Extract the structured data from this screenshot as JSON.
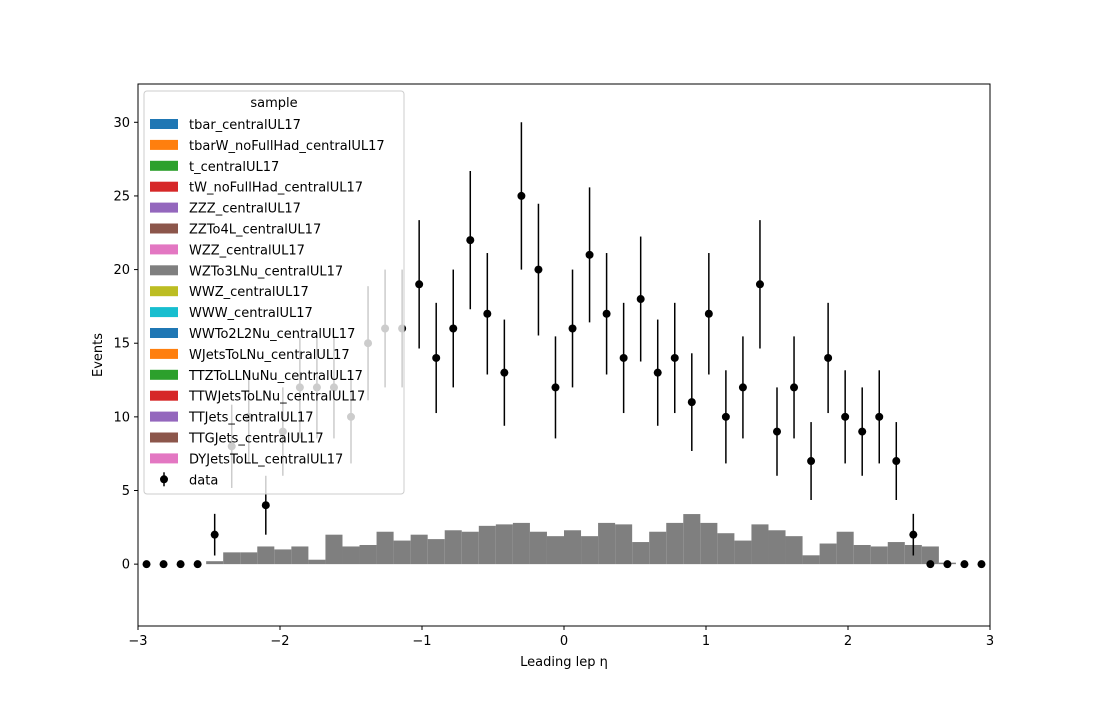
{
  "chart_data": {
    "type": "stacked-histogram",
    "xlabel": "Leading lep η",
    "ylabel": "Events",
    "xlim": [
      -3,
      3
    ],
    "ylim": [
      -4.2,
      32.6
    ],
    "xticks": [
      "−3",
      "−2",
      "−1",
      "0",
      "1",
      "2",
      "3"
    ],
    "xtick_values": [
      -3,
      -2,
      -1,
      0,
      1,
      2,
      3
    ],
    "yticks": [
      "0",
      "5",
      "10",
      "15",
      "20",
      "25",
      "30"
    ],
    "ytick_values": [
      0,
      5,
      10,
      15,
      20,
      25,
      30
    ],
    "legend_title": "sample",
    "legend_placement": "upper-left",
    "bin_edges": [
      -3.0,
      -2.88,
      -2.76,
      -2.64,
      -2.52,
      -2.4,
      -2.28,
      -2.16,
      -2.04,
      -1.92,
      -1.8,
      -1.68,
      -1.56,
      -1.44,
      -1.32,
      -1.2,
      -1.08,
      -0.96,
      -0.84,
      -0.72,
      -0.6,
      -0.48,
      -0.36,
      -0.24,
      -0.12,
      0.0,
      0.12,
      0.24,
      0.36,
      0.48,
      0.6,
      0.72,
      0.84,
      0.96,
      1.08,
      1.2,
      1.32,
      1.44,
      1.56,
      1.68,
      1.8,
      1.92,
      2.04,
      2.16,
      2.28,
      2.4,
      2.52,
      2.64,
      2.76,
      2.88,
      3.0
    ],
    "series": [
      {
        "name": "tbar_centralUL17",
        "color": "#1f77b4",
        "values": [
          0,
          0,
          0,
          0,
          0,
          0,
          0,
          0,
          0,
          0,
          0,
          0,
          0,
          0,
          0,
          0,
          0,
          0,
          0,
          0,
          0,
          0,
          0,
          0,
          0,
          0,
          0,
          0,
          0,
          0,
          0,
          0,
          0,
          0,
          0,
          0,
          0,
          0,
          0,
          0,
          0,
          0,
          0,
          0,
          0,
          0,
          0,
          0,
          0,
          0
        ]
      },
      {
        "name": "tbarW_noFullHad_centralUL17",
        "color": "#ff7f0e",
        "values": [
          0,
          0,
          0,
          0,
          0,
          0,
          0,
          0,
          0,
          0,
          0,
          0,
          0,
          0,
          0,
          0,
          0,
          0,
          0,
          0,
          0,
          0,
          0,
          0,
          0,
          0,
          0,
          0,
          0,
          0,
          0,
          0,
          0,
          0,
          0,
          0,
          0,
          0,
          0,
          0,
          0,
          0,
          0,
          0,
          0,
          0,
          0,
          0,
          0,
          0
        ]
      },
      {
        "name": "t_centralUL17",
        "color": "#2ca02c",
        "values": [
          0,
          0,
          0,
          0,
          0,
          0,
          0,
          0,
          0,
          0,
          0,
          0,
          0,
          0,
          0,
          0,
          0,
          0,
          0,
          0,
          0,
          0,
          0,
          0,
          0,
          0,
          0,
          0,
          0,
          0,
          0,
          0,
          0,
          0,
          0,
          0,
          0,
          0,
          0,
          0,
          0,
          0,
          0,
          0,
          0,
          0,
          0,
          0,
          0,
          0
        ]
      },
      {
        "name": "tW_noFullHad_centralUL17",
        "color": "#d62728",
        "values": [
          0,
          0,
          0,
          0,
          0,
          0,
          0,
          0,
          0,
          0,
          0,
          0,
          0,
          0,
          0,
          0,
          0,
          0,
          0,
          0,
          0,
          0,
          0,
          0,
          0,
          0,
          0,
          0,
          0,
          0,
          0,
          0,
          0,
          0,
          0,
          0,
          0,
          0,
          0,
          0,
          0,
          0,
          0,
          0,
          0,
          0,
          0,
          0,
          0,
          0
        ]
      },
      {
        "name": "ZZZ_centralUL17",
        "color": "#9467bd",
        "values": [
          0,
          0,
          0,
          0,
          0,
          0,
          0,
          0,
          0,
          0,
          0,
          0,
          0,
          0,
          0,
          0,
          0,
          0,
          0,
          0,
          0,
          0,
          0,
          0,
          0,
          0,
          0,
          0,
          0,
          0,
          0,
          0,
          0,
          0,
          0,
          0,
          0,
          0,
          0,
          0,
          0,
          0,
          0,
          0,
          0,
          0,
          0,
          0,
          0,
          0
        ]
      },
      {
        "name": "ZZTo4L_centralUL17",
        "color": "#8c564b",
        "values": [
          0,
          0,
          0,
          0,
          0,
          0,
          0,
          0,
          0,
          0,
          0,
          0,
          0,
          0,
          0,
          0,
          0,
          0,
          0,
          0,
          0,
          0,
          0,
          0,
          0,
          0,
          0,
          0,
          0,
          0,
          0,
          0,
          0,
          0,
          0,
          0,
          0,
          0,
          0,
          0,
          0,
          0,
          0,
          0,
          0,
          0,
          0,
          0,
          0,
          0
        ]
      },
      {
        "name": "WZZ_centralUL17",
        "color": "#e377c2",
        "values": [
          0,
          0,
          0,
          0,
          0,
          0,
          0,
          0,
          0,
          0,
          0,
          0,
          0,
          0,
          0,
          0,
          0,
          0,
          0,
          0,
          0,
          0,
          0,
          0,
          0,
          0,
          0,
          0,
          0,
          0,
          0,
          0,
          0,
          0,
          0,
          0,
          0,
          0,
          0,
          0,
          0,
          0,
          0,
          0,
          0,
          0,
          0,
          0,
          0,
          0
        ]
      },
      {
        "name": "WZTo3LNu_centralUL17",
        "color": "#7f7f7f",
        "values": [
          0,
          0,
          0,
          0,
          0.2,
          0.8,
          0.8,
          1.2,
          1.0,
          1.2,
          0.3,
          2.0,
          1.2,
          1.3,
          2.2,
          1.6,
          2.0,
          1.7,
          2.3,
          2.2,
          2.6,
          2.7,
          2.8,
          2.2,
          1.9,
          2.3,
          1.9,
          2.8,
          2.7,
          1.5,
          2.2,
          2.8,
          3.4,
          2.8,
          2.1,
          1.6,
          2.7,
          2.3,
          1.9,
          0.6,
          1.4,
          2.2,
          1.3,
          1.2,
          1.5,
          1.3,
          1.2,
          0.1,
          0,
          0
        ]
      },
      {
        "name": "WWZ_centralUL17",
        "color": "#bcbd22",
        "values": [
          0,
          0,
          0,
          0,
          0,
          0,
          0,
          0,
          0,
          0,
          0,
          0,
          0,
          0,
          0,
          0,
          0,
          0,
          0,
          0,
          0,
          0,
          0,
          0,
          0,
          0,
          0,
          0,
          0,
          0,
          0,
          0,
          0,
          0,
          0,
          0,
          0,
          0,
          0,
          0,
          0,
          0,
          0,
          0,
          0,
          0,
          0,
          0,
          0,
          0
        ]
      },
      {
        "name": "WWW_centralUL17",
        "color": "#17becf",
        "values": [
          0,
          0,
          0,
          0,
          0,
          0,
          0,
          0,
          0,
          0,
          0,
          0,
          0,
          0,
          0,
          0,
          0,
          0,
          0,
          0,
          0,
          0,
          0,
          0,
          0,
          0,
          0,
          0,
          0,
          0,
          0,
          0,
          0,
          0,
          0,
          0,
          0,
          0,
          0,
          0,
          0,
          0,
          0,
          0,
          0,
          0,
          0,
          0,
          0,
          0
        ]
      },
      {
        "name": "WWTo2L2Nu_centralUL17",
        "color": "#1f77b4",
        "values": [
          0,
          0,
          0,
          0,
          0,
          0,
          0,
          0,
          0,
          0,
          0,
          0,
          0,
          0,
          0,
          0,
          0,
          0,
          0,
          0,
          0,
          0,
          0,
          0,
          0,
          0,
          0,
          0,
          0,
          0,
          0,
          0,
          0,
          0,
          0,
          0,
          0,
          0,
          0,
          0,
          0,
          0,
          0,
          0,
          0,
          0,
          0,
          0,
          0,
          0
        ]
      },
      {
        "name": "WJetsToLNu_centralUL17",
        "color": "#ff7f0e",
        "values": [
          0,
          0,
          0,
          0,
          0,
          0,
          0,
          0,
          0,
          0,
          0,
          0,
          0,
          0,
          0,
          0,
          0,
          0,
          0,
          0,
          0,
          0,
          0,
          0,
          0,
          0,
          0,
          0,
          0,
          0,
          0,
          0,
          0,
          0,
          0,
          0,
          0,
          0,
          0,
          0,
          0,
          0,
          0,
          0,
          0,
          0,
          0,
          0,
          0,
          0
        ]
      },
      {
        "name": "TTZToLLNuNu_centralUL17",
        "color": "#2ca02c",
        "values": [
          0,
          0,
          0,
          0,
          0,
          0,
          0,
          0,
          0,
          0,
          0,
          0,
          0,
          0,
          0,
          0,
          0,
          0,
          0,
          0,
          0,
          0,
          0,
          0,
          0,
          0,
          0,
          0,
          0,
          0,
          0,
          0,
          0,
          0,
          0,
          0,
          0,
          0,
          0,
          0,
          0,
          0,
          0,
          0,
          0,
          0,
          0,
          0,
          0,
          0
        ]
      },
      {
        "name": "TTWJetsToLNu_centralUL17",
        "color": "#d62728",
        "values": [
          0,
          0,
          0,
          0,
          0,
          0,
          0,
          0,
          0,
          0,
          0,
          0,
          0,
          0,
          0,
          0,
          0,
          0,
          0,
          0,
          0,
          0,
          0,
          0,
          0,
          0,
          0,
          0,
          0,
          0,
          0,
          0,
          0,
          0,
          0,
          0,
          0,
          0,
          0,
          0,
          0,
          0,
          0,
          0,
          0,
          0,
          0,
          0,
          0,
          0
        ]
      },
      {
        "name": "TTJets_centralUL17",
        "color": "#9467bd",
        "values": [
          0,
          0,
          0,
          0,
          0,
          0,
          0,
          0,
          0,
          0,
          0,
          0,
          0,
          0,
          0,
          0,
          0,
          0,
          0,
          0,
          0,
          0,
          0,
          0,
          0,
          0,
          0,
          0,
          0,
          0,
          0,
          0,
          0,
          0,
          0,
          0,
          0,
          0,
          0,
          0,
          0,
          0,
          0,
          0,
          0,
          0,
          0,
          0,
          0,
          0
        ]
      },
      {
        "name": "TTGJets_centralUL17",
        "color": "#8c564b",
        "values": [
          0,
          0,
          0,
          0,
          0,
          0,
          0,
          0,
          0,
          0,
          0,
          0,
          0,
          0,
          0,
          0,
          0,
          0,
          0,
          0,
          0,
          0,
          0,
          0,
          0,
          0,
          0,
          0,
          0,
          0,
          0,
          0,
          0,
          0,
          0,
          0,
          0,
          0,
          0,
          0,
          0,
          0,
          0,
          0,
          0,
          0,
          0,
          0,
          0,
          0
        ]
      },
      {
        "name": "DYJetsToLL_centralUL17",
        "color": "#e377c2",
        "values": [
          0,
          0,
          0,
          0,
          0,
          0,
          0,
          0,
          0,
          0,
          0,
          0,
          0,
          0,
          0,
          0,
          0,
          0,
          0,
          0,
          0,
          0,
          0,
          0,
          0,
          0,
          0,
          0,
          0,
          0,
          0,
          0,
          0,
          0,
          0,
          0,
          0,
          0,
          0,
          0,
          0,
          0,
          0,
          0,
          0,
          0,
          0,
          0,
          0,
          0
        ]
      }
    ],
    "data": {
      "name": "data",
      "color": "#000000",
      "x": [
        -2.94,
        -2.82,
        -2.7,
        -2.58,
        -2.46,
        -2.34,
        -2.22,
        -2.1,
        -1.98,
        -1.86,
        -1.74,
        -1.62,
        -1.5,
        -1.38,
        -1.26,
        -1.14,
        -1.02,
        -0.9,
        -0.78,
        -0.66,
        -0.54,
        -0.42,
        -0.3,
        -0.18,
        -0.06,
        0.06,
        0.18,
        0.3,
        0.42,
        0.54,
        0.66,
        0.78,
        0.9,
        1.02,
        1.14,
        1.26,
        1.38,
        1.5,
        1.62,
        1.74,
        1.86,
        1.98,
        2.1,
        2.22,
        2.34,
        2.46,
        2.58,
        2.7,
        2.82,
        2.94
      ],
      "y": [
        0,
        0,
        0,
        0,
        2,
        8,
        10,
        4,
        9,
        12,
        12,
        12,
        10,
        15,
        16,
        16,
        19,
        14,
        16,
        22,
        17,
        13,
        25,
        20,
        12,
        16,
        21,
        17,
        14,
        18,
        13,
        14,
        11,
        17,
        10,
        12,
        19,
        9,
        12,
        7,
        14,
        10,
        9,
        10,
        7,
        2,
        0,
        0,
        0,
        0
      ]
    }
  }
}
